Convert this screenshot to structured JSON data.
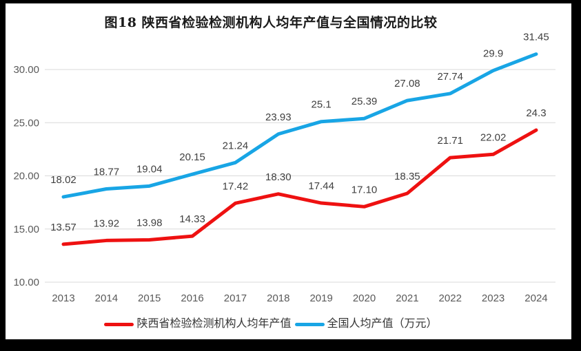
{
  "frame": {
    "border_color": "#000000",
    "background_color": "#ffffff"
  },
  "chart_data": {
    "type": "line",
    "title": "图18 陕西省检验检测机构人均年产值与全国情况的比较",
    "categories": [
      "2013",
      "2014",
      "2015",
      "2016",
      "2017",
      "2018",
      "2019",
      "2020",
      "2021",
      "2022",
      "2023",
      "2024"
    ],
    "series": [
      {
        "name": "陕西省检验检测机构人均年产值",
        "color": "#EE1111",
        "values": [
          13.57,
          13.92,
          13.98,
          14.33,
          17.42,
          18.3,
          17.44,
          17.1,
          18.35,
          21.71,
          22.02,
          24.3
        ],
        "labels": [
          "13.57",
          "13.92",
          "13.98",
          "14.33",
          "17.42",
          "18.30",
          "17.44",
          "17.10",
          "18.35",
          "21.71",
          "22.02",
          "24.3"
        ]
      },
      {
        "name": "全国人均产值（万元）",
        "color": "#18A5E5",
        "values": [
          18.02,
          18.77,
          19.04,
          20.15,
          21.24,
          23.93,
          25.1,
          25.39,
          27.08,
          27.74,
          29.9,
          31.45
        ],
        "labels": [
          "18.02",
          "18.77",
          "19.04",
          "20.15",
          "21.24",
          "23.93",
          "25.1",
          "25.39",
          "27.08",
          "27.74",
          "29.9",
          "31.45"
        ]
      }
    ],
    "y_axis": {
      "tick_labels": [
        "10.00",
        "15.00",
        "20.00",
        "25.00",
        "30.00"
      ],
      "min": 10,
      "max": 32.5,
      "tick_color": "#595959"
    },
    "x_axis": {
      "tick_color": "#595959"
    },
    "grid": true,
    "gridline_color": "#D9D9D9",
    "data_label_color": "#3F3F3F",
    "legend_position": "bottom",
    "line_width": 5
  }
}
